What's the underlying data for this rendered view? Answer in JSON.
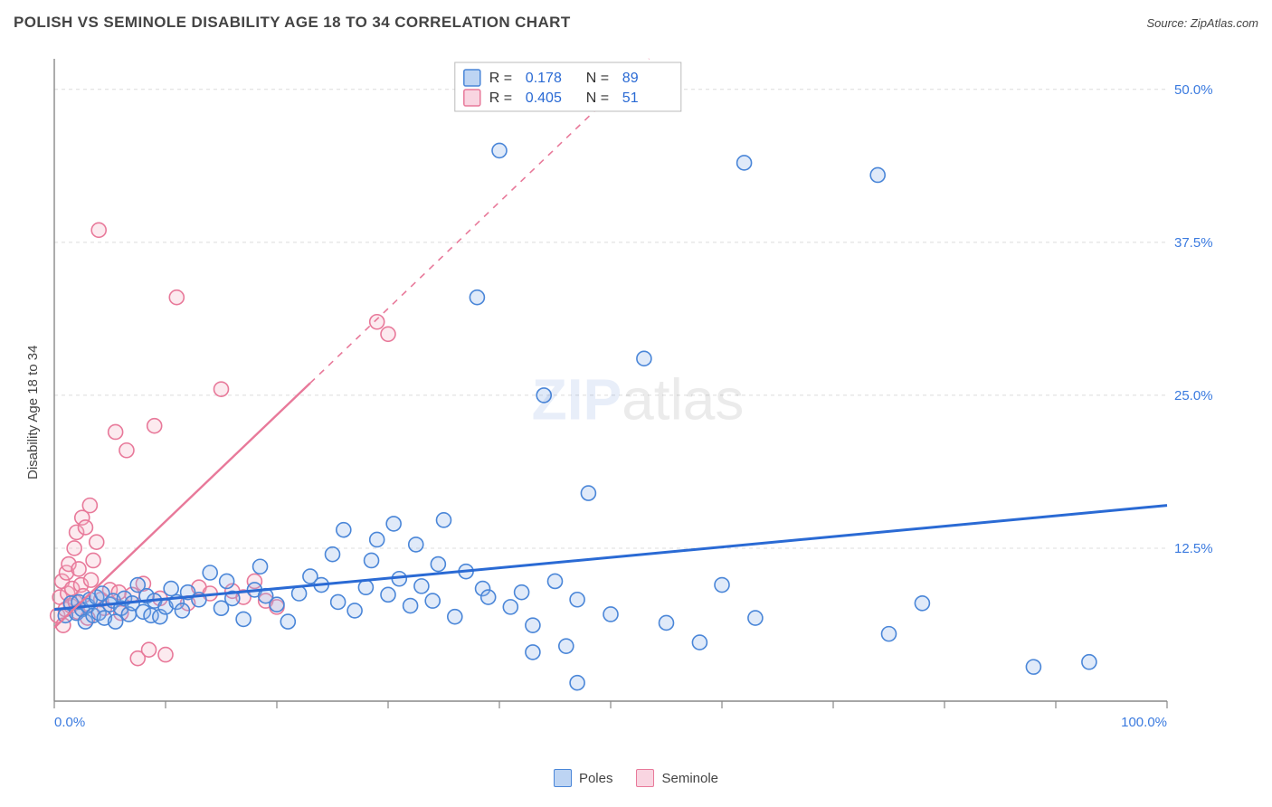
{
  "title": "POLISH VS SEMINOLE DISABILITY AGE 18 TO 34 CORRELATION CHART",
  "source": "Source: ZipAtlas.com",
  "y_axis_label": "Disability Age 18 to 34",
  "watermark_zip": "ZIP",
  "watermark_atlas": "atlas",
  "chart": {
    "type": "scatter",
    "xlim": [
      0,
      100
    ],
    "ylim": [
      0,
      52.5
    ],
    "x_ticks_major": [
      0,
      10,
      20,
      30,
      40,
      50,
      60,
      70,
      80,
      90,
      100
    ],
    "x_tick_labels": {
      "0": "0.0%",
      "100": "100.0%"
    },
    "y_ticks": [
      12.5,
      25.0,
      37.5,
      50.0
    ],
    "y_tick_labels": [
      "12.5%",
      "25.0%",
      "37.5%",
      "50.0%"
    ],
    "grid_color": "#dcdcdc",
    "grid_dash": "4,4",
    "axis_color": "#888888",
    "background": "#ffffff",
    "axis_label_color": "#3a7adf",
    "marker_radius": 8,
    "marker_stroke_width": 1.6,
    "marker_fill_opacity": 0.28
  },
  "series": {
    "poles": {
      "label": "Poles",
      "color_stroke": "#4a86d8",
      "color_fill": "#8fb4e8",
      "trend": {
        "x1": 0,
        "y1": 7.5,
        "x2": 100,
        "y2": 16.0,
        "dash_after_x": 100
      },
      "R": "0.178",
      "N": "89",
      "points": [
        [
          1,
          7
        ],
        [
          1.5,
          8
        ],
        [
          2,
          7.2
        ],
        [
          2.2,
          8.1
        ],
        [
          2.5,
          7.5
        ],
        [
          2.8,
          6.5
        ],
        [
          3,
          7.8
        ],
        [
          3.2,
          8.3
        ],
        [
          3.5,
          7
        ],
        [
          3.8,
          8.5
        ],
        [
          4,
          7.2
        ],
        [
          4.3,
          8.8
        ],
        [
          4.5,
          6.8
        ],
        [
          5,
          7.9
        ],
        [
          5.3,
          8.2
        ],
        [
          5.5,
          6.5
        ],
        [
          6,
          7.6
        ],
        [
          6.3,
          8.4
        ],
        [
          6.7,
          7.1
        ],
        [
          7,
          8
        ],
        [
          7.5,
          9.5
        ],
        [
          8,
          7.3
        ],
        [
          8.3,
          8.6
        ],
        [
          8.7,
          7
        ],
        [
          9,
          8.2
        ],
        [
          9.5,
          6.9
        ],
        [
          10,
          7.7
        ],
        [
          10.5,
          9.2
        ],
        [
          11,
          8.1
        ],
        [
          11.5,
          7.4
        ],
        [
          12,
          8.9
        ],
        [
          13,
          8.3
        ],
        [
          14,
          10.5
        ],
        [
          15,
          7.6
        ],
        [
          15.5,
          9.8
        ],
        [
          16,
          8.4
        ],
        [
          17,
          6.7
        ],
        [
          18,
          9.1
        ],
        [
          18.5,
          11
        ],
        [
          19,
          8.6
        ],
        [
          20,
          7.9
        ],
        [
          21,
          6.5
        ],
        [
          22,
          8.8
        ],
        [
          23,
          10.2
        ],
        [
          24,
          9.5
        ],
        [
          25,
          12
        ],
        [
          25.5,
          8.1
        ],
        [
          26,
          14
        ],
        [
          27,
          7.4
        ],
        [
          28,
          9.3
        ],
        [
          28.5,
          11.5
        ],
        [
          29,
          13.2
        ],
        [
          30,
          8.7
        ],
        [
          30.5,
          14.5
        ],
        [
          31,
          10
        ],
        [
          32,
          7.8
        ],
        [
          32.5,
          12.8
        ],
        [
          33,
          9.4
        ],
        [
          34,
          8.2
        ],
        [
          34.5,
          11.2
        ],
        [
          35,
          14.8
        ],
        [
          36,
          6.9
        ],
        [
          37,
          10.6
        ],
        [
          38,
          33
        ],
        [
          38.5,
          9.2
        ],
        [
          39,
          8.5
        ],
        [
          40,
          45
        ],
        [
          41,
          7.7
        ],
        [
          42,
          8.9
        ],
        [
          43,
          6.2
        ],
        [
          44,
          25
        ],
        [
          45,
          9.8
        ],
        [
          46,
          4.5
        ],
        [
          47,
          8.3
        ],
        [
          48,
          17
        ],
        [
          50,
          7.1
        ],
        [
          53,
          28
        ],
        [
          55,
          6.4
        ],
        [
          58,
          4.8
        ],
        [
          60,
          9.5
        ],
        [
          62,
          44
        ],
        [
          63,
          6.8
        ],
        [
          74,
          43
        ],
        [
          75,
          5.5
        ],
        [
          78,
          8
        ],
        [
          88,
          2.8
        ],
        [
          93,
          3.2
        ],
        [
          47,
          1.5
        ],
        [
          43,
          4
        ]
      ]
    },
    "seminole": {
      "label": "Seminole",
      "color_stroke": "#e8799a",
      "color_fill": "#f4b3c6",
      "trend": {
        "x1": 0,
        "y1": 6,
        "x2": 23,
        "y2": 26,
        "dash_to_x": 100,
        "dash_to_y": 93
      },
      "R": "0.405",
      "N": "51",
      "points": [
        [
          0.3,
          7
        ],
        [
          0.5,
          8.5
        ],
        [
          0.7,
          9.8
        ],
        [
          0.8,
          6.2
        ],
        [
          1,
          7.5
        ],
        [
          1.1,
          10.5
        ],
        [
          1.2,
          8.8
        ],
        [
          1.3,
          11.2
        ],
        [
          1.5,
          7.8
        ],
        [
          1.6,
          9.2
        ],
        [
          1.8,
          12.5
        ],
        [
          1.9,
          8.1
        ],
        [
          2,
          13.8
        ],
        [
          2.1,
          7.3
        ],
        [
          2.2,
          10.8
        ],
        [
          2.4,
          9.5
        ],
        [
          2.5,
          15
        ],
        [
          2.6,
          8.6
        ],
        [
          2.8,
          14.2
        ],
        [
          3,
          6.8
        ],
        [
          3.2,
          16
        ],
        [
          3.3,
          9.9
        ],
        [
          3.5,
          11.5
        ],
        [
          3.8,
          13
        ],
        [
          4,
          38.5
        ],
        [
          4.2,
          8.3
        ],
        [
          4.5,
          7.6
        ],
        [
          5,
          9.1
        ],
        [
          5.5,
          22
        ],
        [
          5.8,
          8.9
        ],
        [
          6,
          7.2
        ],
        [
          6.5,
          20.5
        ],
        [
          7,
          8.7
        ],
        [
          7.5,
          3.5
        ],
        [
          8,
          9.6
        ],
        [
          8.5,
          4.2
        ],
        [
          9,
          22.5
        ],
        [
          9.5,
          8.4
        ],
        [
          10,
          3.8
        ],
        [
          11,
          33
        ],
        [
          12,
          8
        ],
        [
          13,
          9.3
        ],
        [
          14,
          8.8
        ],
        [
          15,
          25.5
        ],
        [
          16,
          9
        ],
        [
          17,
          8.5
        ],
        [
          18,
          9.8
        ],
        [
          19,
          8.2
        ],
        [
          20,
          7.7
        ],
        [
          29,
          31
        ],
        [
          30,
          30
        ]
      ]
    }
  },
  "stats_box": {
    "border_color": "#bbbbbb",
    "bg": "#ffffff",
    "text_color_black": "#333333",
    "text_color_blue": "#2a6ad4"
  },
  "legend_bottom": {
    "border_color_poles": "#4a86d8",
    "fill_poles": "#bdd4f3",
    "border_color_seminole": "#e8799a",
    "fill_seminole": "#f9d5e1"
  }
}
